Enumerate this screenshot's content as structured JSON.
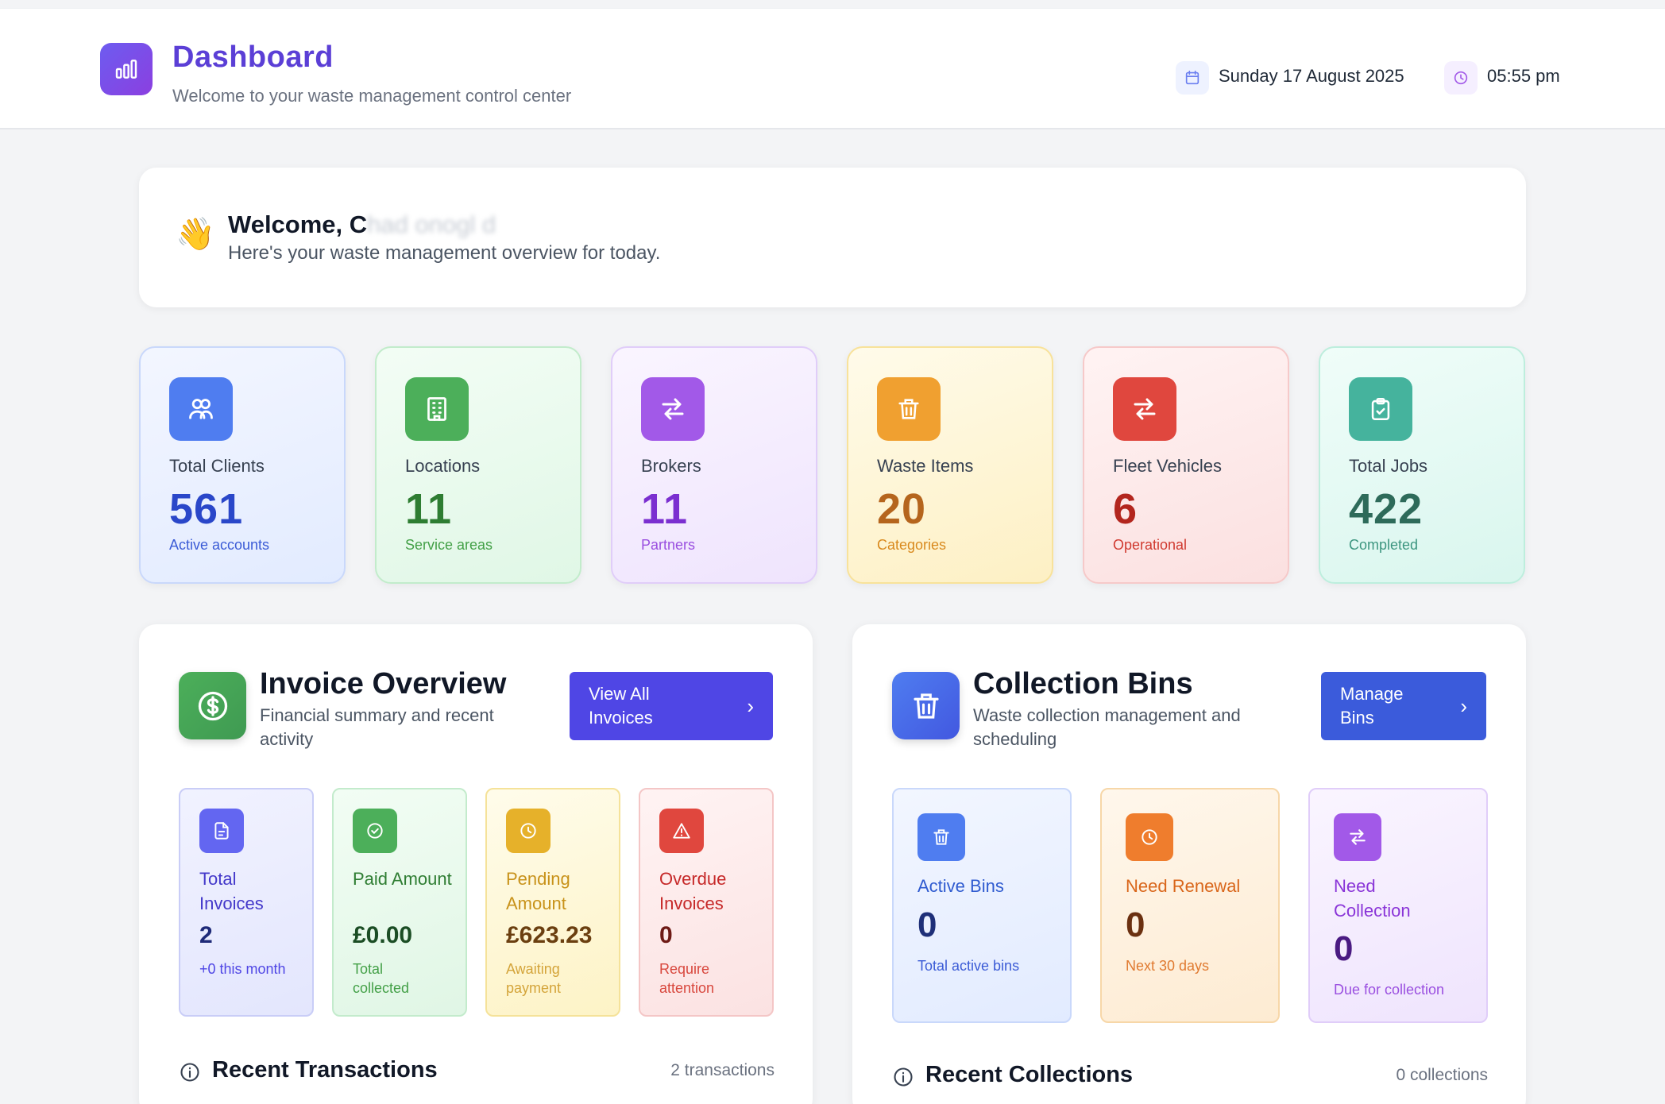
{
  "header": {
    "title": "Dashboard",
    "subtitle": "Welcome to your waste management control center",
    "date": "Sunday 17 August 2025",
    "time": "05:55 pm",
    "icons": {
      "brand": "bar-chart-icon",
      "date": "calendar-icon",
      "time": "clock-icon"
    }
  },
  "welcome": {
    "emoji": "👋",
    "greeting": "Welcome, C",
    "name_blurred": "had onogl d",
    "message": "Here's your waste management overview for today."
  },
  "stats": [
    {
      "label": "Total Clients",
      "value": "561",
      "sub": "Active accounts",
      "icon": "users-icon",
      "accent": "#4f7df0"
    },
    {
      "label": "Locations",
      "value": "11",
      "sub": "Service areas",
      "icon": "building-icon",
      "accent": "#4caf5a"
    },
    {
      "label": "Brokers",
      "value": "11",
      "sub": "Partners",
      "icon": "arrows-exchange-icon",
      "accent": "#a259e8"
    },
    {
      "label": "Waste Items",
      "value": "20",
      "sub": "Categories",
      "icon": "trash-icon",
      "accent": "#f0a030"
    },
    {
      "label": "Fleet Vehicles",
      "value": "6",
      "sub": "Operational",
      "icon": "arrows-exchange-icon",
      "accent": "#e0473e"
    },
    {
      "label": "Total Jobs",
      "value": "422",
      "sub": "Completed",
      "icon": "clipboard-check-icon",
      "accent": "#45b39d"
    }
  ],
  "invoice": {
    "title": "Invoice Overview",
    "subtitle": "Financial summary and recent activity",
    "button": "View All Invoices",
    "cards": [
      {
        "label": "Total Invoices",
        "value": "2",
        "sub": "+0 this month",
        "icon": "document-icon"
      },
      {
        "label": "Paid Amount",
        "value": "£0.00",
        "sub": "Total collected",
        "icon": "check-circle-icon"
      },
      {
        "label": "Pending Amount",
        "value": "£623.23",
        "sub": "Awaiting payment",
        "icon": "clock-icon"
      },
      {
        "label": "Overdue Invoices",
        "value": "0",
        "sub": "Require attention",
        "icon": "warning-icon"
      }
    ],
    "recent_title": "Recent Transactions",
    "recent_count": "2 transactions"
  },
  "bins": {
    "title": "Collection Bins",
    "subtitle": "Waste collection management and scheduling",
    "button": "Manage Bins",
    "cards": [
      {
        "label": "Active Bins",
        "value": "0",
        "sub": "Total active bins",
        "icon": "trash-icon"
      },
      {
        "label": "Need Renewal",
        "value": "0",
        "sub": "Next 30 days",
        "icon": "clock-icon"
      },
      {
        "label": "Need Collection",
        "value": "0",
        "sub": "Due for collection",
        "icon": "arrows-exchange-icon"
      }
    ],
    "recent_title": "Recent Collections",
    "recent_count": "0 collections"
  }
}
